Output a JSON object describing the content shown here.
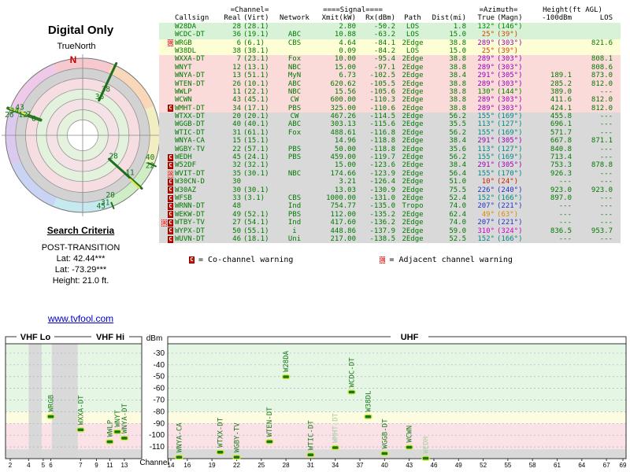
{
  "colors": {
    "accent_green": "#007a00",
    "bar_fill": "#157a15",
    "bar_stroke": "#d9e84d",
    "label_green": "#1a7a1a",
    "label_faded": "#a4cda4",
    "tier_strong": "#d7f2d7",
    "tier_moderate": "#fdfdd6",
    "tier_weak": "#fbdada",
    "tier_fringe": "#d9d9d9",
    "north_red": "#cc0000",
    "wheel_sectors": [
      "#f6c9cf",
      "#f8d8b8",
      "#f0eec2",
      "#cfeec6",
      "#c6e9ef",
      "#c9d3f3",
      "#dbc9f0",
      "#efc9e9"
    ],
    "radar_rings": [
      {
        "r": 0.87,
        "fill": "#d2d2d2"
      },
      {
        "r": 0.74,
        "fill": "#f6dde2"
      },
      {
        "r": 0.6,
        "fill": "#e2f2dc"
      },
      {
        "r": 0.47,
        "fill": "#f4e2e6"
      },
      {
        "r": 0.33,
        "fill": "#e4f2de"
      },
      {
        "r": 0.2,
        "fill": "#ffffff"
      }
    ]
  },
  "radar": {
    "title": "Digital Only",
    "subtitle": "TrueNorth",
    "north_label": "N",
    "spokes": [
      {
        "az": 25,
        "r1": 0.5,
        "r2": 1.03,
        "w": 3,
        "color": "#1d6e1d"
      },
      {
        "az": 290,
        "r1": 0.58,
        "r2": 1.03,
        "w": 4,
        "color": "#2a7a2a"
      },
      {
        "az": 290.5,
        "r1": 0.78,
        "r2": 1.0,
        "w": 2.5,
        "color": "#e3e35a"
      },
      {
        "az": 132,
        "r1": 0.46,
        "r2": 1.03,
        "w": 3,
        "color": "#1d6e1d"
      },
      {
        "az": 133,
        "r1": 0.84,
        "r2": 1.0,
        "w": 2.5,
        "color": "#e3e35a"
      },
      {
        "az": 113,
        "r1": 0.92,
        "r2": 1.03,
        "w": 2,
        "color": "#1d6e1d"
      },
      {
        "az": 157,
        "r1": 0.95,
        "r2": 1.03,
        "w": 2,
        "color": "#1d6e1d"
      }
    ],
    "labels": [
      {
        "text": "38",
        "az": 28,
        "r": 0.64
      },
      {
        "text": "36",
        "az": 25,
        "r": 0.52
      },
      {
        "text": "6",
        "az": 286,
        "r": 0.66
      },
      {
        "text": "7",
        "az": 289,
        "r": 0.74
      },
      {
        "text": "12",
        "az": 287,
        "r": 0.81
      },
      {
        "text": "43",
        "az": 292,
        "r": 0.88
      },
      {
        "text": "34",
        "az": 288,
        "r": 0.93
      },
      {
        "text": "26",
        "az": 284,
        "r": 0.98
      },
      {
        "text": "28",
        "az": 127,
        "r": 0.5
      },
      {
        "text": "11",
        "az": 130,
        "r": 0.8
      },
      {
        "text": "40",
        "az": 110,
        "r": 0.93
      },
      {
        "text": "22",
        "az": 116,
        "r": 0.97
      },
      {
        "text": "20",
        "az": 156,
        "r": 0.88
      },
      {
        "text": "31",
        "az": 162,
        "r": 0.95
      },
      {
        "text": "45",
        "az": 166,
        "r": 0.98
      }
    ]
  },
  "search_criteria": {
    "heading": "Search Criteria",
    "mode": "POST-TRANSITION",
    "lat1": "Lat: 42.44***",
    "lat2": "Lat: -73.29***",
    "height": "Height: 21.0 ft."
  },
  "link": {
    "label": "www.tvfool.com"
  },
  "table": {
    "headers": {
      "channel": "=Channel=",
      "signal": "====Signal====",
      "azimuth": "=Azimuth=",
      "height": "Height(ft AGL)",
      "callsign": "Callsign",
      "real": "Real",
      "virt": "(Virt)",
      "network": "Network",
      "xmit": "Xmit(kW)",
      "rx": "Rx(dBm)",
      "path": "Path",
      "dist": "Dist(mi)",
      "az_true": "True",
      "az_magn": "(Magn)",
      "h100": "-100dBm",
      "los": "LOS"
    },
    "rows": [
      {
        "warn": "",
        "call": "W28DA",
        "real": "28",
        "virt": "(28.1)",
        "net": "",
        "xmit": "2.80",
        "rx": "-50.2",
        "path": "LOS",
        "dist": "1.8",
        "az_true": "132°",
        "az_magn": "(146°)",
        "h100": "",
        "los": "",
        "tier": "strong",
        "az_color": "#008800"
      },
      {
        "warn": "",
        "call": "WCDC-DT",
        "real": "36",
        "virt": "(19.1)",
        "net": "ABC",
        "xmit": "10.88",
        "rx": "-63.2",
        "path": "LOS",
        "dist": "15.0",
        "az_true": "25°",
        "az_magn": "(39°)",
        "h100": "",
        "los": "",
        "tier": "strong",
        "az_color": "#cc4400"
      },
      {
        "warn": "a",
        "call": "WRGB",
        "real": "6",
        "virt": "(6.1)",
        "net": "CBS",
        "xmit": "4.64",
        "rx": "-84.1",
        "path": "2Edge",
        "dist": "38.8",
        "az_true": "289°",
        "az_magn": "(303°)",
        "h100": "",
        "los": "821.6",
        "tier": "moderate",
        "az_color": "#9900bb"
      },
      {
        "warn": "",
        "call": "W38DL",
        "real": "38",
        "virt": "(38.1)",
        "net": "",
        "xmit": "0.09",
        "rx": "-84.2",
        "path": "LOS",
        "dist": "15.0",
        "az_true": "25°",
        "az_magn": "(39°)",
        "h100": "",
        "los": "",
        "tier": "moderate",
        "az_color": "#cc4400"
      },
      {
        "warn": "",
        "call": "WXXA-DT",
        "real": "7",
        "virt": "(23.1)",
        "net": "Fox",
        "xmit": "10.00",
        "rx": "-95.4",
        "path": "2Edge",
        "dist": "38.8",
        "az_true": "289°",
        "az_magn": "(303°)",
        "h100": "",
        "los": "808.1",
        "tier": "weak",
        "az_color": "#9900bb"
      },
      {
        "warn": "",
        "call": "WNYT",
        "real": "12",
        "virt": "(13.1)",
        "net": "NBC",
        "xmit": "15.00",
        "rx": "-97.1",
        "path": "2Edge",
        "dist": "38.8",
        "az_true": "289°",
        "az_magn": "(303°)",
        "h100": "",
        "los": "808.6",
        "tier": "weak",
        "az_color": "#9900bb"
      },
      {
        "warn": "",
        "call": "WNYA-DT",
        "real": "13",
        "virt": "(51.1)",
        "net": "MyN",
        "xmit": "6.73",
        "rx": "-102.5",
        "path": "2Edge",
        "dist": "38.4",
        "az_true": "291°",
        "az_magn": "(305°)",
        "h100": "189.1",
        "los": "873.0",
        "tier": "weak",
        "az_color": "#9900bb"
      },
      {
        "warn": "",
        "call": "WTEN-DT",
        "real": "26",
        "virt": "(10.1)",
        "net": "ABC",
        "xmit": "620.62",
        "rx": "-105.5",
        "path": "2Edge",
        "dist": "38.8",
        "az_true": "289°",
        "az_magn": "(303°)",
        "h100": "285.2",
        "los": "812.0",
        "tier": "weak",
        "az_color": "#9900bb"
      },
      {
        "warn": "",
        "call": "WWLP",
        "real": "11",
        "virt": "(22.1)",
        "net": "NBC",
        "xmit": "15.56",
        "rx": "-105.6",
        "path": "2Edge",
        "dist": "38.8",
        "az_true": "130°",
        "az_magn": "(144°)",
        "h100": "389.0",
        "los": "---",
        "tier": "weak",
        "az_color": "#008800"
      },
      {
        "warn": "",
        "call": "WCWN",
        "real": "43",
        "virt": "(45.1)",
        "net": "CW",
        "xmit": "600.00",
        "rx": "-110.3",
        "path": "2Edge",
        "dist": "38.8",
        "az_true": "289°",
        "az_magn": "(303°)",
        "h100": "411.6",
        "los": "812.0",
        "tier": "weak",
        "az_color": "#9900bb"
      },
      {
        "warn": "C",
        "call": "WMHT-DT",
        "real": "34",
        "virt": "(17.1)",
        "net": "PBS",
        "xmit": "325.00",
        "rx": "-110.6",
        "path": "2Edge",
        "dist": "38.8",
        "az_true": "289°",
        "az_magn": "(303°)",
        "h100": "424.1",
        "los": "812.0",
        "tier": "weak",
        "az_color": "#9900bb"
      },
      {
        "warn": "",
        "call": "WTXX-DT",
        "real": "20",
        "virt": "(20.1)",
        "net": "CW",
        "xmit": "467.26",
        "rx": "-114.5",
        "path": "2Edge",
        "dist": "56.2",
        "az_true": "155°",
        "az_magn": "(169°)",
        "h100": "455.8",
        "los": "---",
        "tier": "fringe",
        "az_color": "#008888"
      },
      {
        "warn": "",
        "call": "WGGB-DT",
        "real": "40",
        "virt": "(40.1)",
        "net": "ABC",
        "xmit": "303.13",
        "rx": "-115.6",
        "path": "2Edge",
        "dist": "35.5",
        "az_true": "113°",
        "az_magn": "(127°)",
        "h100": "696.1",
        "los": "---",
        "tier": "fringe",
        "az_color": "#008888"
      },
      {
        "warn": "",
        "call": "WTIC-DT",
        "real": "31",
        "virt": "(61.1)",
        "net": "Fox",
        "xmit": "488.61",
        "rx": "-116.8",
        "path": "2Edge",
        "dist": "56.2",
        "az_true": "155°",
        "az_magn": "(169°)",
        "h100": "571.7",
        "los": "---",
        "tier": "fringe",
        "az_color": "#008888"
      },
      {
        "warn": "",
        "call": "WNYA-CA",
        "real": "15",
        "virt": "(15.1)",
        "net": "",
        "xmit": "14.96",
        "rx": "-118.8",
        "path": "2Edge",
        "dist": "38.4",
        "az_true": "291°",
        "az_magn": "(305°)",
        "h100": "667.8",
        "los": "871.1",
        "tier": "fringe",
        "az_color": "#9900bb"
      },
      {
        "warn": "",
        "call": "WGBY-TV",
        "real": "22",
        "virt": "(57.1)",
        "net": "PBS",
        "xmit": "50.00",
        "rx": "-118.8",
        "path": "2Edge",
        "dist": "35.6",
        "az_true": "113°",
        "az_magn": "(127°)",
        "h100": "840.8",
        "los": "---",
        "tier": "fringe",
        "az_color": "#008888"
      },
      {
        "warn": "C",
        "call": "WEDH",
        "real": "45",
        "virt": "(24.1)",
        "net": "PBS",
        "xmit": "459.00",
        "rx": "-119.7",
        "path": "2Edge",
        "dist": "56.2",
        "az_true": "155°",
        "az_magn": "(169°)",
        "h100": "713.4",
        "los": "---",
        "tier": "fringe",
        "az_color": "#008888"
      },
      {
        "warn": "C",
        "call": "W52DF",
        "real": "32",
        "virt": "(32.1)",
        "net": "",
        "xmit": "15.00",
        "rx": "-123.6",
        "path": "2Edge",
        "dist": "38.4",
        "az_true": "291°",
        "az_magn": "(305°)",
        "h100": "753.3",
        "los": "878.8",
        "tier": "fringe",
        "az_color": "#9900bb"
      },
      {
        "warn": "a",
        "call": "WVIT-DT",
        "real": "35",
        "virt": "(30.1)",
        "net": "NBC",
        "xmit": "174.66",
        "rx": "-123.9",
        "path": "2Edge",
        "dist": "56.4",
        "az_true": "155°",
        "az_magn": "(170°)",
        "h100": "926.3",
        "los": "---",
        "tier": "fringe",
        "az_color": "#008888"
      },
      {
        "warn": "C",
        "call": "W30CN-D",
        "real": "30",
        "virt": "",
        "net": "",
        "xmit": "3.21",
        "rx": "-126.4",
        "path": "2Edge",
        "dist": "51.0",
        "az_true": "10°",
        "az_magn": "(24°)",
        "h100": "---",
        "los": "---",
        "tier": "fringe",
        "az_color": "#cc2200"
      },
      {
        "warn": "C",
        "call": "W30AZ",
        "real": "30",
        "virt": "(30.1)",
        "net": "",
        "xmit": "13.03",
        "rx": "-130.9",
        "path": "2Edge",
        "dist": "75.5",
        "az_true": "226°",
        "az_magn": "(240°)",
        "h100": "923.0",
        "los": "923.0",
        "tier": "fringe",
        "az_color": "#2233cc"
      },
      {
        "warn": "C",
        "call": "WFSB",
        "real": "33",
        "virt": "(3.1)",
        "net": "CBS",
        "xmit": "1000.00",
        "rx": "-131.0",
        "path": "2Edge",
        "dist": "52.4",
        "az_true": "152°",
        "az_magn": "(166°)",
        "h100": "897.0",
        "los": "---",
        "tier": "fringe",
        "az_color": "#008888"
      },
      {
        "warn": "C",
        "call": "WRNN-DT",
        "real": "48",
        "virt": "",
        "net": "Ind",
        "xmit": "754.77",
        "rx": "-135.0",
        "path": "Tropo",
        "dist": "74.0",
        "az_true": "207°",
        "az_magn": "(221°)",
        "h100": "---",
        "los": "---",
        "tier": "fringe",
        "az_color": "#2233cc"
      },
      {
        "warn": "C",
        "call": "WEKW-DT",
        "real": "49",
        "virt": "(52.1)",
        "net": "PBS",
        "xmit": "112.00",
        "rx": "-135.2",
        "path": "2Edge",
        "dist": "62.4",
        "az_true": "49°",
        "az_magn": "(63°)",
        "h100": "---",
        "los": "---",
        "tier": "fringe",
        "az_color": "#dd8800"
      },
      {
        "warn": "aC",
        "call": "WTBY-TV",
        "real": "27",
        "virt": "(54.1)",
        "net": "Ind",
        "xmit": "417.60",
        "rx": "-136.2",
        "path": "2Edge",
        "dist": "74.0",
        "az_true": "207°",
        "az_magn": "(221°)",
        "h100": "---",
        "los": "---",
        "tier": "fringe",
        "az_color": "#2233cc"
      },
      {
        "warn": "C",
        "call": "WYPX-DT",
        "real": "50",
        "virt": "(55.1)",
        "net": "i",
        "xmit": "448.86",
        "rx": "-137.9",
        "path": "2Edge",
        "dist": "59.0",
        "az_true": "310°",
        "az_magn": "(324°)",
        "h100": "836.5",
        "los": "953.7",
        "tier": "fringe",
        "az_color": "#cc00cc"
      },
      {
        "warn": "C",
        "call": "WUVN-DT",
        "real": "46",
        "virt": "(18.1)",
        "net": "Uni",
        "xmit": "217.00",
        "rx": "-138.5",
        "path": "2Edge",
        "dist": "52.5",
        "az_true": "152°",
        "az_magn": "(166°)",
        "h100": "---",
        "los": "---",
        "tier": "fringe",
        "az_color": "#008888"
      }
    ]
  },
  "legend": {
    "co_icon": "C",
    "co_text": "= Co-channel warning",
    "adj_icon": "a",
    "adj_text": "= Adjacent channel warning"
  },
  "chart_data": {
    "type": "scatter",
    "title": "",
    "ylabel": "dBm",
    "xlabel": "Channel",
    "ylim": [
      -120,
      -22
    ],
    "yticks": [
      -30,
      -40,
      -50,
      -60,
      -70,
      -80,
      -90,
      -100,
      -110
    ],
    "band_labels": [
      "VHF Lo",
      "VHF Hi",
      "UHF"
    ],
    "vhf_ticks": [
      2,
      4,
      5,
      6,
      7,
      9,
      11,
      13
    ],
    "uhf_ticks": [
      14,
      16,
      19,
      22,
      25,
      28,
      31,
      34,
      37,
      40,
      43,
      46,
      49,
      52,
      55,
      58,
      61,
      64,
      67,
      69
    ],
    "vhf_x": {
      "2": 0.0,
      "4": 0.145,
      "5": 0.26,
      "6": 0.32,
      "7": 0.555,
      "9": 0.68,
      "11": 0.785,
      "12": 0.845,
      "13": 0.9
    },
    "vhf_gray_gaps": [
      [
        0.17,
        0.265
      ],
      [
        0.34,
        0.53
      ]
    ],
    "zones": [
      {
        "from": -80,
        "to": -22,
        "color": "#e6f6e4"
      },
      {
        "from": -90,
        "to": -80,
        "color": "#fdfce0"
      },
      {
        "from": -112,
        "to": -90,
        "color": "#fbe2e6"
      },
      {
        "from": -125,
        "to": -112,
        "color": "#d9d9d9"
      }
    ],
    "points": [
      {
        "ch": 6,
        "call": "WRGB",
        "dbm": -84.1
      },
      {
        "ch": 7,
        "call": "WXXA-DT",
        "dbm": -95.4
      },
      {
        "ch": 11,
        "call": "WWLP",
        "dbm": -105.6
      },
      {
        "ch": 12,
        "call": "WNYT",
        "dbm": -97.1
      },
      {
        "ch": 13,
        "call": "WNYA-DT",
        "dbm": -102.5
      },
      {
        "ch": 15,
        "call": "WNYA-CA",
        "dbm": -118.8
      },
      {
        "ch": 20,
        "call": "WTXX-DT",
        "dbm": -114.5
      },
      {
        "ch": 22,
        "call": "WGBY-TV",
        "dbm": -118.8
      },
      {
        "ch": 26,
        "call": "WTEN-DT",
        "dbm": -105.5
      },
      {
        "ch": 28,
        "call": "W28DA",
        "dbm": -50.2
      },
      {
        "ch": 31,
        "call": "WTIC-DT",
        "dbm": -116.8
      },
      {
        "ch": 34,
        "call": "WMHT-DT",
        "dbm": -110.6,
        "faded": true
      },
      {
        "ch": 36,
        "call": "WCDC-DT",
        "dbm": -63.2
      },
      {
        "ch": 38,
        "call": "W38DL",
        "dbm": -84.2
      },
      {
        "ch": 40,
        "call": "WGGB-DT",
        "dbm": -115.6
      },
      {
        "ch": 43,
        "call": "WCWN",
        "dbm": -110.3
      },
      {
        "ch": 45,
        "call": "WEDH",
        "dbm": -119.7,
        "faded": true
      }
    ]
  }
}
